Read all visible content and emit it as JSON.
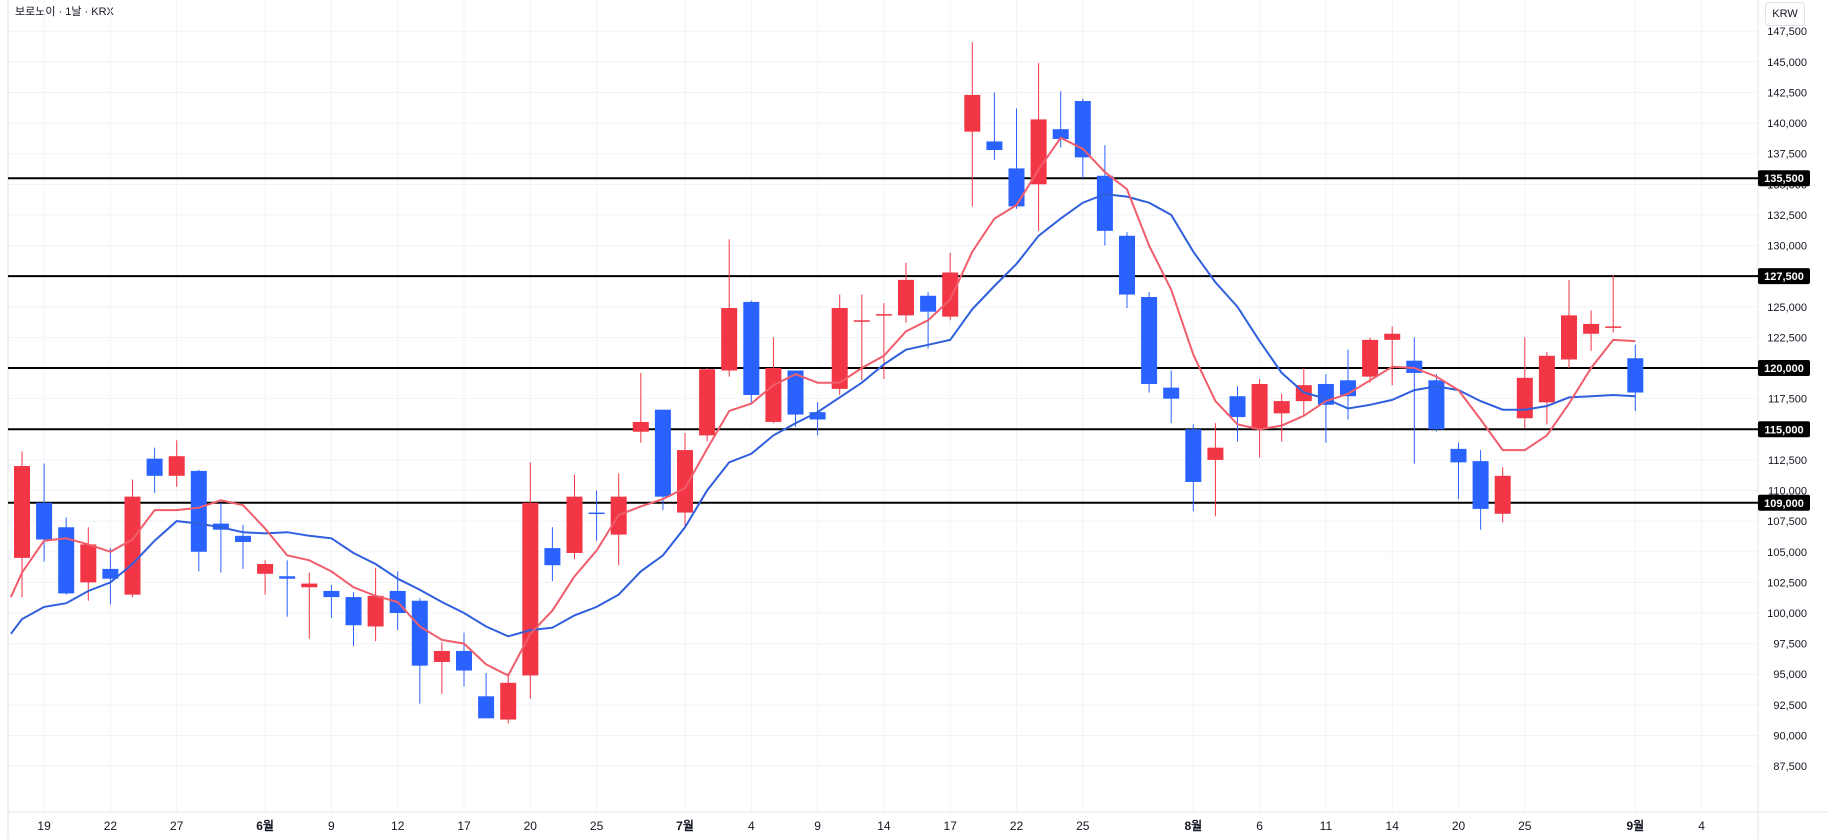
{
  "header": {
    "title": "보로노이 · 1날 · KRX",
    "currency": "KRW"
  },
  "colors": {
    "up": "#f23645",
    "down": "#2962ff",
    "ma_short": "#f05d6b",
    "ma_long": "#2f5fdc",
    "level_line": "#000000",
    "grid": "#f0f3fa",
    "text": "#131722"
  },
  "chart_data": {
    "type": "candlestick",
    "y_axis": {
      "min": 85000,
      "max": 148000,
      "ticks": [
        147500,
        145000,
        142500,
        140000,
        137500,
        135000,
        132500,
        130000,
        127500,
        125000,
        122500,
        120000,
        117500,
        115000,
        112500,
        110000,
        107500,
        105000,
        102500,
        100000,
        97500,
        95000,
        92500,
        90000,
        87500
      ],
      "tick_labels": [
        "147,500",
        "145,000",
        "142,500",
        "140,000",
        "137,500",
        "135,000",
        "132,500",
        "130,000",
        "127,500",
        "125,000",
        "122,500",
        "120,000",
        "117,500",
        "115,000",
        "112,500",
        "110,000",
        "107,500",
        "105,000",
        "102,500",
        "100,000",
        "97,500",
        "95,000",
        "92,500",
        "90,000",
        "87,500"
      ]
    },
    "x_axis": {
      "labels": [
        {
          "text": "19",
          "index": 1,
          "bold": false
        },
        {
          "text": "22",
          "index": 4,
          "bold": false
        },
        {
          "text": "27",
          "index": 7,
          "bold": false
        },
        {
          "text": "6월",
          "index": 11,
          "bold": true
        },
        {
          "text": "9",
          "index": 14,
          "bold": false
        },
        {
          "text": "12",
          "index": 17,
          "bold": false
        },
        {
          "text": "17",
          "index": 20,
          "bold": false
        },
        {
          "text": "20",
          "index": 23,
          "bold": false
        },
        {
          "text": "25",
          "index": 26,
          "bold": false
        },
        {
          "text": "7월",
          "index": 30,
          "bold": true
        },
        {
          "text": "4",
          "index": 33,
          "bold": false
        },
        {
          "text": "9",
          "index": 36,
          "bold": false
        },
        {
          "text": "14",
          "index": 39,
          "bold": false
        },
        {
          "text": "17",
          "index": 42,
          "bold": false
        },
        {
          "text": "22",
          "index": 45,
          "bold": false
        },
        {
          "text": "25",
          "index": 48,
          "bold": false
        },
        {
          "text": "8월",
          "index": 53,
          "bold": true
        },
        {
          "text": "6",
          "index": 56,
          "bold": false
        },
        {
          "text": "11",
          "index": 59,
          "bold": false
        },
        {
          "text": "14",
          "index": 62,
          "bold": false
        },
        {
          "text": "20",
          "index": 65,
          "bold": false
        },
        {
          "text": "25",
          "index": 68,
          "bold": false
        },
        {
          "text": "9월",
          "index": 73,
          "bold": true
        },
        {
          "text": "4",
          "index": 76,
          "bold": false
        }
      ]
    },
    "levels": [
      {
        "value": 135500,
        "label": "135,500"
      },
      {
        "value": 127500,
        "label": "127,500"
      },
      {
        "value": 120000,
        "label": "120,000"
      },
      {
        "value": 115000,
        "label": "115,000"
      },
      {
        "value": 109000,
        "label": "109,000"
      }
    ],
    "candles": [
      {
        "o": 104500,
        "h": 113200,
        "l": 101300,
        "c": 112000
      },
      {
        "o": 109000,
        "h": 112200,
        "l": 104200,
        "c": 106000
      },
      {
        "o": 107000,
        "h": 107800,
        "l": 101500,
        "c": 101600
      },
      {
        "o": 102500,
        "h": 107000,
        "l": 101000,
        "c": 105600
      },
      {
        "o": 103600,
        "h": 105300,
        "l": 100700,
        "c": 102800
      },
      {
        "o": 101500,
        "h": 110900,
        "l": 101300,
        "c": 109500
      },
      {
        "o": 112600,
        "h": 113500,
        "l": 109800,
        "c": 111200
      },
      {
        "o": 111200,
        "h": 114100,
        "l": 110300,
        "c": 112800
      },
      {
        "o": 111600,
        "h": 111700,
        "l": 103400,
        "c": 105000
      },
      {
        "o": 107300,
        "h": 109000,
        "l": 103300,
        "c": 106800
      },
      {
        "o": 106300,
        "h": 107200,
        "l": 103600,
        "c": 105800
      },
      {
        "o": 103200,
        "h": 104300,
        "l": 101500,
        "c": 104000
      },
      {
        "o": 103000,
        "h": 104300,
        "l": 99700,
        "c": 102800
      },
      {
        "o": 102100,
        "h": 103300,
        "l": 97900,
        "c": 102400
      },
      {
        "o": 101800,
        "h": 102300,
        "l": 99600,
        "c": 101300
      },
      {
        "o": 101300,
        "h": 101700,
        "l": 97300,
        "c": 99000
      },
      {
        "o": 98900,
        "h": 103700,
        "l": 97700,
        "c": 101400
      },
      {
        "o": 101800,
        "h": 103400,
        "l": 98600,
        "c": 100000
      },
      {
        "o": 101000,
        "h": 101200,
        "l": 92600,
        "c": 95700
      },
      {
        "o": 96000,
        "h": 97600,
        "l": 93400,
        "c": 96900
      },
      {
        "o": 96900,
        "h": 98400,
        "l": 94000,
        "c": 95300
      },
      {
        "o": 93200,
        "h": 95100,
        "l": 91400,
        "c": 91400
      },
      {
        "o": 91300,
        "h": 95100,
        "l": 91000,
        "c": 94300
      },
      {
        "o": 94900,
        "h": 112300,
        "l": 93000,
        "c": 109000
      },
      {
        "o": 105300,
        "h": 107000,
        "l": 102600,
        "c": 103900
      },
      {
        "o": 104900,
        "h": 111300,
        "l": 104400,
        "c": 109500
      },
      {
        "o": 108200,
        "h": 110000,
        "l": 105900,
        "c": 108100
      },
      {
        "o": 106400,
        "h": 111400,
        "l": 103900,
        "c": 109500
      },
      {
        "o": 114800,
        "h": 119600,
        "l": 113900,
        "c": 115600
      },
      {
        "o": 116600,
        "h": 116600,
        "l": 108400,
        "c": 109500
      },
      {
        "o": 108200,
        "h": 114700,
        "l": 107000,
        "c": 113300
      },
      {
        "o": 114500,
        "h": 120000,
        "l": 114000,
        "c": 119900
      },
      {
        "o": 119800,
        "h": 130500,
        "l": 119300,
        "c": 124900
      },
      {
        "o": 125400,
        "h": 125500,
        "l": 117000,
        "c": 117800
      },
      {
        "o": 115600,
        "h": 122500,
        "l": 115500,
        "c": 120000
      },
      {
        "o": 119800,
        "h": 119800,
        "l": 115200,
        "c": 116200
      },
      {
        "o": 116400,
        "h": 117200,
        "l": 114500,
        "c": 115800
      },
      {
        "o": 118300,
        "h": 126000,
        "l": 117800,
        "c": 124900
      },
      {
        "o": 123800,
        "h": 126000,
        "l": 119000,
        "c": 123900
      },
      {
        "o": 124300,
        "h": 125300,
        "l": 119100,
        "c": 124400
      },
      {
        "o": 124300,
        "h": 128600,
        "l": 123700,
        "c": 127200
      },
      {
        "o": 125900,
        "h": 126200,
        "l": 121600,
        "c": 124600
      },
      {
        "o": 124200,
        "h": 129400,
        "l": 123900,
        "c": 127800
      },
      {
        "o": 139300,
        "h": 146600,
        "l": 133200,
        "c": 142300
      },
      {
        "o": 138500,
        "h": 142500,
        "l": 137000,
        "c": 137800
      },
      {
        "o": 136300,
        "h": 141200,
        "l": 133000,
        "c": 133200
      },
      {
        "o": 135000,
        "h": 144900,
        "l": 131200,
        "c": 140300
      },
      {
        "o": 139500,
        "h": 142600,
        "l": 138000,
        "c": 138700
      },
      {
        "o": 141800,
        "h": 142000,
        "l": 135500,
        "c": 137200
      },
      {
        "o": 135700,
        "h": 138200,
        "l": 130000,
        "c": 131200
      },
      {
        "o": 130800,
        "h": 131100,
        "l": 124900,
        "c": 126000
      },
      {
        "o": 125800,
        "h": 126200,
        "l": 118000,
        "c": 118700
      },
      {
        "o": 118400,
        "h": 119800,
        "l": 115500,
        "c": 117500
      },
      {
        "o": 115000,
        "h": 115400,
        "l": 108300,
        "c": 110700
      },
      {
        "o": 112500,
        "h": 115500,
        "l": 107900,
        "c": 113500
      },
      {
        "o": 117700,
        "h": 118500,
        "l": 114000,
        "c": 116000
      },
      {
        "o": 115000,
        "h": 119100,
        "l": 112700,
        "c": 118700
      },
      {
        "o": 116300,
        "h": 117900,
        "l": 114000,
        "c": 117300
      },
      {
        "o": 117300,
        "h": 120000,
        "l": 116100,
        "c": 118600
      },
      {
        "o": 118700,
        "h": 119500,
        "l": 113900,
        "c": 117000
      },
      {
        "o": 119000,
        "h": 121500,
        "l": 115800,
        "c": 117700
      },
      {
        "o": 119300,
        "h": 122500,
        "l": 118800,
        "c": 122300
      },
      {
        "o": 122300,
        "h": 123400,
        "l": 118600,
        "c": 122800
      },
      {
        "o": 120600,
        "h": 122500,
        "l": 112200,
        "c": 119600
      },
      {
        "o": 119000,
        "h": 119500,
        "l": 114800,
        "c": 115000
      },
      {
        "o": 113400,
        "h": 113900,
        "l": 109300,
        "c": 112300
      },
      {
        "o": 112400,
        "h": 113300,
        "l": 106800,
        "c": 108500
      },
      {
        "o": 108100,
        "h": 111900,
        "l": 107400,
        "c": 111200
      },
      {
        "o": 115900,
        "h": 122500,
        "l": 115100,
        "c": 119200
      },
      {
        "o": 117200,
        "h": 121300,
        "l": 115400,
        "c": 121000
      },
      {
        "o": 120700,
        "h": 127200,
        "l": 120000,
        "c": 124300
      },
      {
        "o": 122800,
        "h": 124700,
        "l": 121400,
        "c": 123600
      },
      {
        "o": 123400,
        "h": 127600,
        "l": 122900,
        "c": 123400
      },
      {
        "o": 120800,
        "h": 121900,
        "l": 116500,
        "c": 118000
      }
    ],
    "ma_short": [
      {
        "i": -0.5,
        "v": 101300
      },
      {
        "i": 0,
        "v": 103300
      },
      {
        "i": 1,
        "v": 105900
      },
      {
        "i": 2,
        "v": 106100
      },
      {
        "i": 3,
        "v": 105600
      },
      {
        "i": 4,
        "v": 105000
      },
      {
        "i": 5,
        "v": 106000
      },
      {
        "i": 6,
        "v": 108400
      },
      {
        "i": 7,
        "v": 108400
      },
      {
        "i": 8,
        "v": 108600
      },
      {
        "i": 9,
        "v": 109200
      },
      {
        "i": 10,
        "v": 108800
      },
      {
        "i": 11,
        "v": 106900
      },
      {
        "i": 12,
        "v": 104700
      },
      {
        "i": 13,
        "v": 104300
      },
      {
        "i": 14,
        "v": 103400
      },
      {
        "i": 15,
        "v": 102100
      },
      {
        "i": 16,
        "v": 101400
      },
      {
        "i": 17,
        "v": 100900
      },
      {
        "i": 18,
        "v": 98900
      },
      {
        "i": 19,
        "v": 97800
      },
      {
        "i": 20,
        "v": 97500
      },
      {
        "i": 21,
        "v": 95800
      },
      {
        "i": 22,
        "v": 94900
      },
      {
        "i": 23,
        "v": 98300
      },
      {
        "i": 24,
        "v": 100200
      },
      {
        "i": 25,
        "v": 103000
      },
      {
        "i": 26,
        "v": 105100
      },
      {
        "i": 27,
        "v": 108000
      },
      {
        "i": 28,
        "v": 108700
      },
      {
        "i": 29,
        "v": 109300
      },
      {
        "i": 30,
        "v": 110200
      },
      {
        "i": 31,
        "v": 113400
      },
      {
        "i": 32,
        "v": 116500
      },
      {
        "i": 33,
        "v": 117100
      },
      {
        "i": 34,
        "v": 118600
      },
      {
        "i": 35,
        "v": 119500
      },
      {
        "i": 36,
        "v": 118800
      },
      {
        "i": 37,
        "v": 118800
      },
      {
        "i": 38,
        "v": 120000
      },
      {
        "i": 39,
        "v": 121000
      },
      {
        "i": 40,
        "v": 123000
      },
      {
        "i": 41,
        "v": 123900
      },
      {
        "i": 42,
        "v": 125600
      },
      {
        "i": 43,
        "v": 129500
      },
      {
        "i": 44,
        "v": 132200
      },
      {
        "i": 45,
        "v": 133300
      },
      {
        "i": 46,
        "v": 136200
      },
      {
        "i": 47,
        "v": 138800
      },
      {
        "i": 48,
        "v": 137900
      },
      {
        "i": 49,
        "v": 136000
      },
      {
        "i": 50,
        "v": 134600
      },
      {
        "i": 51,
        "v": 130000
      },
      {
        "i": 52,
        "v": 126400
      },
      {
        "i": 53,
        "v": 121100
      },
      {
        "i": 54,
        "v": 117300
      },
      {
        "i": 55,
        "v": 115400
      },
      {
        "i": 56,
        "v": 115000
      },
      {
        "i": 57,
        "v": 115300
      },
      {
        "i": 58,
        "v": 116100
      },
      {
        "i": 59,
        "v": 117300
      },
      {
        "i": 60,
        "v": 117900
      },
      {
        "i": 61,
        "v": 119000
      },
      {
        "i": 62,
        "v": 120100
      },
      {
        "i": 63,
        "v": 120000
      },
      {
        "i": 64,
        "v": 119300
      },
      {
        "i": 65,
        "v": 118200
      },
      {
        "i": 66,
        "v": 115800
      },
      {
        "i": 67,
        "v": 113300
      },
      {
        "i": 68,
        "v": 113300
      },
      {
        "i": 69,
        "v": 114500
      },
      {
        "i": 70,
        "v": 117100
      },
      {
        "i": 71,
        "v": 120000
      },
      {
        "i": 72,
        "v": 122300
      },
      {
        "i": 73,
        "v": 122200
      }
    ],
    "ma_long": [
      {
        "i": -0.5,
        "v": 98300
      },
      {
        "i": 0,
        "v": 99500
      },
      {
        "i": 1,
        "v": 100500
      },
      {
        "i": 2,
        "v": 100800
      },
      {
        "i": 3,
        "v": 101800
      },
      {
        "i": 4,
        "v": 102500
      },
      {
        "i": 5,
        "v": 104000
      },
      {
        "i": 6,
        "v": 105900
      },
      {
        "i": 7,
        "v": 107500
      },
      {
        "i": 8,
        "v": 107300
      },
      {
        "i": 9,
        "v": 107000
      },
      {
        "i": 10,
        "v": 106600
      },
      {
        "i": 11,
        "v": 106500
      },
      {
        "i": 12,
        "v": 106600
      },
      {
        "i": 13,
        "v": 106300
      },
      {
        "i": 14,
        "v": 106100
      },
      {
        "i": 15,
        "v": 104900
      },
      {
        "i": 16,
        "v": 104000
      },
      {
        "i": 17,
        "v": 102800
      },
      {
        "i": 18,
        "v": 101900
      },
      {
        "i": 19,
        "v": 100900
      },
      {
        "i": 20,
        "v": 100000
      },
      {
        "i": 21,
        "v": 98900
      },
      {
        "i": 22,
        "v": 98100
      },
      {
        "i": 23,
        "v": 98600
      },
      {
        "i": 24,
        "v": 98800
      },
      {
        "i": 25,
        "v": 99800
      },
      {
        "i": 26,
        "v": 100500
      },
      {
        "i": 27,
        "v": 101500
      },
      {
        "i": 28,
        "v": 103400
      },
      {
        "i": 29,
        "v": 104700
      },
      {
        "i": 30,
        "v": 107000
      },
      {
        "i": 31,
        "v": 110000
      },
      {
        "i": 32,
        "v": 112300
      },
      {
        "i": 33,
        "v": 113000
      },
      {
        "i": 34,
        "v": 114500
      },
      {
        "i": 35,
        "v": 115500
      },
      {
        "i": 36,
        "v": 116400
      },
      {
        "i": 37,
        "v": 117600
      },
      {
        "i": 38,
        "v": 118800
      },
      {
        "i": 39,
        "v": 120300
      },
      {
        "i": 40,
        "v": 121500
      },
      {
        "i": 41,
        "v": 121900
      },
      {
        "i": 42,
        "v": 122300
      },
      {
        "i": 43,
        "v": 124800
      },
      {
        "i": 44,
        "v": 126700
      },
      {
        "i": 45,
        "v": 128500
      },
      {
        "i": 46,
        "v": 130800
      },
      {
        "i": 47,
        "v": 132200
      },
      {
        "i": 48,
        "v": 133500
      },
      {
        "i": 49,
        "v": 134200
      },
      {
        "i": 50,
        "v": 134000
      },
      {
        "i": 51,
        "v": 133500
      },
      {
        "i": 52,
        "v": 132500
      },
      {
        "i": 53,
        "v": 129500
      },
      {
        "i": 54,
        "v": 127000
      },
      {
        "i": 55,
        "v": 125000
      },
      {
        "i": 56,
        "v": 122200
      },
      {
        "i": 57,
        "v": 119600
      },
      {
        "i": 58,
        "v": 118000
      },
      {
        "i": 59,
        "v": 117500
      },
      {
        "i": 60,
        "v": 116700
      },
      {
        "i": 61,
        "v": 117000
      },
      {
        "i": 62,
        "v": 117400
      },
      {
        "i": 63,
        "v": 118200
      },
      {
        "i": 64,
        "v": 118500
      },
      {
        "i": 65,
        "v": 118200
      },
      {
        "i": 66,
        "v": 117300
      },
      {
        "i": 67,
        "v": 116600
      },
      {
        "i": 68,
        "v": 116600
      },
      {
        "i": 69,
        "v": 116900
      },
      {
        "i": 70,
        "v": 117600
      },
      {
        "i": 71,
        "v": 117700
      },
      {
        "i": 72,
        "v": 117800
      },
      {
        "i": 73,
        "v": 117700
      }
    ]
  }
}
